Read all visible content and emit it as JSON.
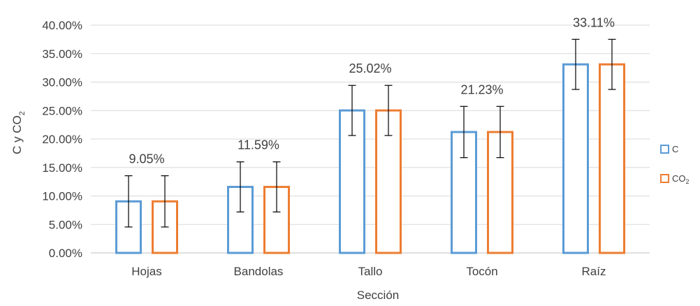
{
  "chart_data": {
    "type": "bar",
    "title": "",
    "xlabel": "Sección",
    "ylabel": "C y CO",
    "ylabel_subscript": "2",
    "ylim": [
      0,
      0.4
    ],
    "y_ticks": [
      0,
      0.05,
      0.1,
      0.15,
      0.2,
      0.25,
      0.3,
      0.35,
      0.4
    ],
    "y_tick_labels": [
      "0.00%",
      "5.00%",
      "10.00%",
      "15.00%",
      "20.00%",
      "25.00%",
      "30.00%",
      "35.00%",
      "40.00%"
    ],
    "grid": true,
    "legend_position": "right",
    "categories": [
      "Hojas",
      "Bandolas",
      "Tallo",
      "Tocón",
      "Raíz"
    ],
    "series": [
      {
        "name": "C",
        "color": "#5B9BD5",
        "values": [
          0.0905,
          0.1159,
          0.2502,
          0.2123,
          0.3311
        ],
        "error": [
          0.045,
          0.044,
          0.044,
          0.045,
          0.044
        ]
      },
      {
        "name": "CO",
        "name_subscript": "2",
        "color": "#ED7D31",
        "values": [
          0.0905,
          0.1159,
          0.2502,
          0.2123,
          0.3311
        ],
        "error": [
          0.045,
          0.044,
          0.044,
          0.045,
          0.044
        ]
      }
    ],
    "data_labels": [
      "9.05%",
      "11.59%",
      "25.02%",
      "21.23%",
      "33.11%"
    ]
  }
}
